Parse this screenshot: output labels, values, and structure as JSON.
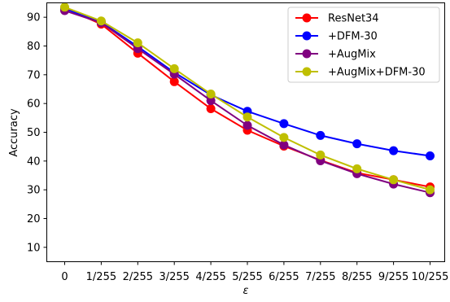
{
  "chart_data": {
    "type": "line",
    "xlabel": "ε",
    "ylabel": "Accuracy",
    "categories": [
      "0",
      "1/255",
      "2/255",
      "3/255",
      "4/255",
      "5/255",
      "6/255",
      "7/255",
      "8/255",
      "9/255",
      "10/255"
    ],
    "yticks": [
      10,
      20,
      30,
      40,
      50,
      60,
      70,
      80,
      90
    ],
    "ylim": [
      5,
      95
    ],
    "grid": false,
    "legend_position": "top-right",
    "series": [
      {
        "name": "ResNet34",
        "color": "#ff0000",
        "values": [
          93.2,
          87.6,
          77.5,
          67.6,
          58.2,
          50.7,
          45.2,
          40.3,
          35.9,
          33.5,
          31.0
        ]
      },
      {
        "name": "+DFM-30",
        "color": "#0000ff",
        "values": [
          93.0,
          88.3,
          79.8,
          70.8,
          63.0,
          57.3,
          53.0,
          48.9,
          46.0,
          43.6,
          41.8
        ]
      },
      {
        "name": "+AugMix",
        "color": "#800080",
        "values": [
          92.3,
          88.1,
          79.1,
          70.2,
          61.0,
          52.4,
          45.6,
          40.1,
          35.6,
          32.0,
          29.0
        ]
      },
      {
        "name": "+AugMix+DFM-30",
        "color": "#bfbf00",
        "values": [
          93.5,
          88.7,
          81.1,
          72.1,
          63.3,
          55.3,
          48.2,
          42.1,
          37.3,
          33.5,
          30.0
        ]
      }
    ]
  }
}
